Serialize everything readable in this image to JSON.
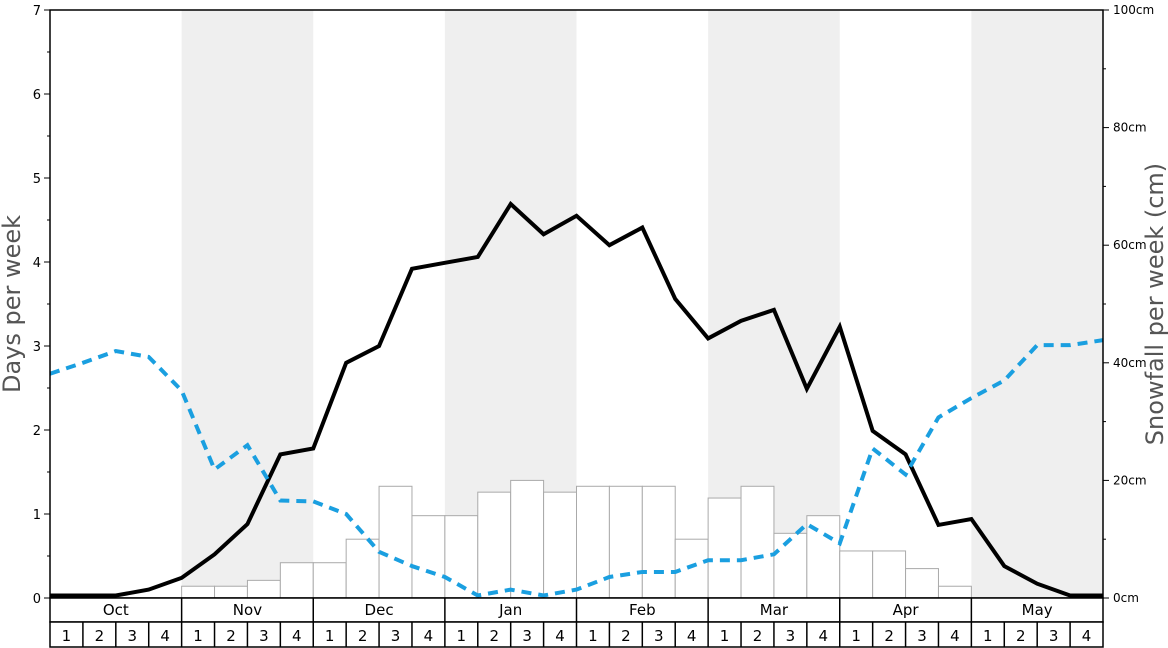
{
  "chart_data": {
    "type": "bar+line",
    "y_left": {
      "label": "Days per week",
      "min": 0,
      "max": 7,
      "ticks": [
        "0",
        "1",
        "2",
        "3",
        "4",
        "5",
        "6",
        "7"
      ]
    },
    "y_right": {
      "label": "Snowfall per week (cm)",
      "min": 0,
      "max": 100,
      "ticks": [
        "0cm",
        "20cm",
        "40cm",
        "60cm",
        "80cm",
        "100cm"
      ]
    },
    "months": [
      "Oct",
      "Nov",
      "Dec",
      "Jan",
      "Feb",
      "Mar",
      "Apr",
      "May"
    ],
    "week_labels": [
      "1",
      "2",
      "3",
      "4"
    ],
    "shaded_months": [
      "Nov",
      "Jan",
      "Mar",
      "May"
    ],
    "colors": {
      "shade": "#efefef",
      "bar_fill": "#ffffff",
      "bar_stroke": "#aaaaaa",
      "solid_line": "#000000",
      "dashed_line": "#1a9fe0"
    },
    "series": [
      {
        "kind": "bar",
        "axis": "right",
        "values": [
          0,
          0,
          0,
          0,
          2,
          2,
          3,
          6,
          6,
          10,
          19,
          14,
          14,
          18,
          20,
          18,
          19,
          19,
          19,
          10,
          17,
          19,
          11,
          14,
          8,
          8,
          5,
          2,
          0,
          0,
          0,
          0
        ]
      },
      {
        "kind": "line",
        "style": "solid",
        "axis": "left",
        "values": [
          0.03,
          0.03,
          0.03,
          0.1,
          0.24,
          0.52,
          0.88,
          1.71,
          1.78,
          2.8,
          3.0,
          3.92,
          3.99,
          4.06,
          4.69,
          4.33,
          4.55,
          4.2,
          4.41,
          3.56,
          3.09,
          3.3,
          3.43,
          2.49,
          3.23,
          1.99,
          1.71,
          0.87,
          0.94,
          0.38,
          0.17,
          0.03,
          0.03
        ]
      },
      {
        "kind": "line",
        "style": "dashed",
        "axis": "left",
        "values": [
          2.67,
          2.8,
          2.94,
          2.87,
          2.47,
          1.53,
          1.82,
          1.16,
          1.15,
          1.0,
          0.55,
          0.38,
          0.25,
          0.03,
          0.1,
          0.03,
          0.1,
          0.25,
          0.31,
          0.31,
          0.45,
          0.45,
          0.52,
          0.88,
          0.65,
          1.78,
          1.47,
          2.15,
          2.38,
          2.59,
          3.01,
          3.01,
          3.07
        ]
      }
    ]
  }
}
